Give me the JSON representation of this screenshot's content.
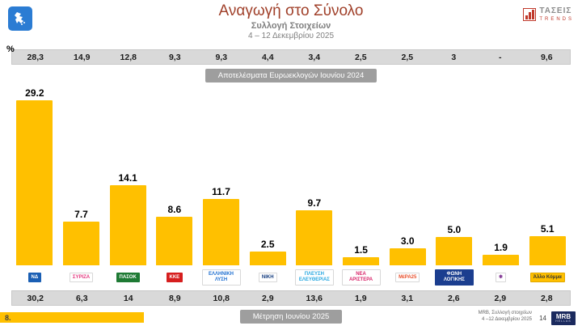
{
  "header": {
    "title": "Αναγωγή στο Σύνολο",
    "subtitle": "Συλλογή Στοιχείων",
    "date_range": "4 – 12 Δεκεμβρίου 2025",
    "taseis_logo_name": "ΤΑΣΕΙΣ",
    "taseis_logo_sub": "TRENDS"
  },
  "percent_label": "%",
  "top_band": {
    "label": "Αποτελέσματα Ευρωεκλογών Ιουνίου 2024",
    "values": [
      "28,3",
      "14,9",
      "12,8",
      "9,3",
      "9,3",
      "4,4",
      "3,4",
      "2,5",
      "2,5",
      "3",
      "-",
      "9,6"
    ]
  },
  "chart_data": {
    "type": "bar",
    "title": "Αναγωγή στο Σύνολο",
    "categories": [
      "ΝΔ",
      "ΣΥΡΙΖΑ",
      "ΠΑΣΟΚ",
      "ΚΚΕ",
      "Ελληνική Λύση",
      "ΝΙΚΗ",
      "Πλεύση Ελευθερίας",
      "Νέα Αριστερά",
      "ΜέΡΑ25",
      "Φωνή Λογικής",
      "Κίνημα Δημοκρατίας",
      "Άλλο Κόμμα"
    ],
    "values": [
      29.2,
      7.7,
      14.1,
      8.6,
      11.7,
      2.5,
      9.7,
      1.5,
      3.0,
      5.0,
      1.9,
      5.1
    ],
    "labels": [
      "29.2",
      "7.7",
      "14.1",
      "8.6",
      "11.7",
      "2.5",
      "9.7",
      "1.5",
      "3.0",
      "5.0",
      "1.9",
      "5.1"
    ],
    "bar_color": "#ffc000",
    "ylim": [
      0,
      30
    ],
    "legend": "none",
    "grid": false
  },
  "parties": [
    {
      "name": "ΝΔ",
      "label": "ΝΔ",
      "bg": "#1a5fb4",
      "fg": "#ffffff",
      "border": "#1a5fb4"
    },
    {
      "name": "ΣΥΡΙΖΑ",
      "label": "ΣΥΡΙΖΑ",
      "bg": "#ffffff",
      "fg": "#e4387f",
      "border": "#d8d8d8"
    },
    {
      "name": "ΠΑΣΟΚ",
      "label": "ΠΑΣΟΚ",
      "bg": "#1e7a34",
      "fg": "#ffffff",
      "border": "#1e7a34"
    },
    {
      "name": "ΚΚΕ",
      "label": "ΚΚΕ",
      "bg": "#d61e1e",
      "fg": "#ffffff",
      "border": "#d61e1e"
    },
    {
      "name": "Ελληνική Λύση",
      "label": "ΕΛΛΗΝΙΚΗ ΛΥΣΗ",
      "bg": "#ffffff",
      "fg": "#1f6fd0",
      "border": "#d8d8d8"
    },
    {
      "name": "ΝΙΚΗ",
      "label": "ΝΙΚΗ",
      "bg": "#ffffff",
      "fg": "#123a7d",
      "border": "#d8d8d8"
    },
    {
      "name": "Πλεύση Ελευθερίας",
      "label": "ΠΛΕΥΣΗ ΕΛΕΥΘΕΡΙΑΣ",
      "bg": "#ffffff",
      "fg": "#29a8e0",
      "border": "#d8d8d8"
    },
    {
      "name": "Νέα Αριστερά",
      "label": "ΝΕΑ ΑΡΙΣΤΕΡΑ",
      "bg": "#ffffff",
      "fg": "#d9276b",
      "border": "#d8d8d8"
    },
    {
      "name": "ΜέΡΑ25",
      "label": "ΜέΡΑ25",
      "bg": "#ffffff",
      "fg": "#e8502d",
      "border": "#d8d8d8"
    },
    {
      "name": "Φωνή Λογικής",
      "label": "ΦΩΝΗ ΛΟΓΙΚΗΣ",
      "bg": "#1b3e8f",
      "fg": "#ffffff",
      "border": "#1b3e8f"
    },
    {
      "name": "Κίνημα Δημοκρατίας",
      "label": "❋",
      "bg": "#ffffff",
      "fg": "#7b2d8e",
      "border": "#d8d8d8"
    },
    {
      "name": "Άλλο Κόμμα",
      "label": "Άλλο Κόμμα",
      "bg": "#ffc000",
      "fg": "#333333",
      "border": "#e0a800"
    }
  ],
  "bottom_band": {
    "label": "Μέτρηση Ιουνίου 2025",
    "values": [
      "30,2",
      "6,3",
      "14",
      "8,9",
      "10,8",
      "2,9",
      "13,6",
      "1,9",
      "3,1",
      "2,6",
      "2,9",
      "2,8"
    ]
  },
  "footer": {
    "page_number_left": "8.",
    "source_line1": "MRB, Συλλογή στοιχείων",
    "source_line2": "4 –12 Δεκεμβρίου 2025",
    "page_number_right": "14",
    "mrb_logo_name": "MRB",
    "mrb_logo_sub": "HELLAS"
  }
}
